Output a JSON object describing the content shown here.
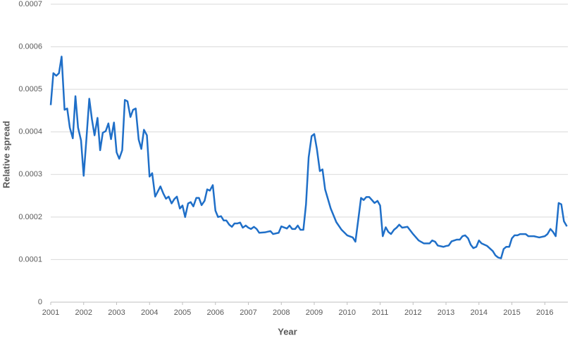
{
  "chart_data": {
    "type": "line",
    "ylabel": "Relative spread",
    "xlabel": "Year",
    "xlim": [
      2001,
      2016.7
    ],
    "xticks": [
      2001,
      2002,
      2003,
      2004,
      2005,
      2006,
      2007,
      2008,
      2009,
      2010,
      2011,
      2012,
      2013,
      2014,
      2015,
      2016
    ],
    "ylim": [
      0,
      0.0007
    ],
    "yticks": [
      0,
      0.0001,
      0.0002,
      0.0003,
      0.0004,
      0.0005,
      0.0006,
      0.0007
    ],
    "grid": true,
    "x": [
      2001.0,
      2001.08,
      2001.17,
      2001.25,
      2001.33,
      2001.42,
      2001.5,
      2001.58,
      2001.67,
      2001.75,
      2001.83,
      2001.92,
      2002.0,
      2002.08,
      2002.17,
      2002.25,
      2002.33,
      2002.42,
      2002.5,
      2002.58,
      2002.67,
      2002.75,
      2002.83,
      2002.92,
      2003.0,
      2003.08,
      2003.17,
      2003.25,
      2003.33,
      2003.42,
      2003.5,
      2003.58,
      2003.67,
      2003.75,
      2003.83,
      2003.92,
      2004.0,
      2004.08,
      2004.17,
      2004.25,
      2004.33,
      2004.42,
      2004.5,
      2004.58,
      2004.67,
      2004.75,
      2004.83,
      2004.92,
      2005.0,
      2005.08,
      2005.17,
      2005.25,
      2005.33,
      2005.42,
      2005.5,
      2005.58,
      2005.67,
      2005.75,
      2005.83,
      2005.92,
      2006.0,
      2006.08,
      2006.17,
      2006.25,
      2006.33,
      2006.42,
      2006.5,
      2006.58,
      2006.67,
      2006.75,
      2006.83,
      2006.92,
      2007.0,
      2007.08,
      2007.17,
      2007.25,
      2007.33,
      2007.5,
      2007.67,
      2007.75,
      2007.92,
      2008.0,
      2008.17,
      2008.25,
      2008.33,
      2008.42,
      2008.5,
      2008.58,
      2008.67,
      2008.75,
      2008.83,
      2008.92,
      2009.0,
      2009.08,
      2009.17,
      2009.25,
      2009.33,
      2009.5,
      2009.67,
      2009.83,
      2010.0,
      2010.17,
      2010.25,
      2010.33,
      2010.42,
      2010.5,
      2010.58,
      2010.67,
      2010.75,
      2010.83,
      2010.92,
      2011.0,
      2011.08,
      2011.17,
      2011.25,
      2011.33,
      2011.42,
      2011.5,
      2011.58,
      2011.67,
      2011.83,
      2012.0,
      2012.17,
      2012.33,
      2012.5,
      2012.58,
      2012.67,
      2012.75,
      2012.92,
      2013.0,
      2013.08,
      2013.17,
      2013.33,
      2013.42,
      2013.5,
      2013.58,
      2013.67,
      2013.75,
      2013.83,
      2013.92,
      2014.0,
      2014.08,
      2014.25,
      2014.42,
      2014.5,
      2014.58,
      2014.67,
      2014.75,
      2014.83,
      2014.92,
      2015.0,
      2015.08,
      2015.17,
      2015.25,
      2015.42,
      2015.5,
      2015.67,
      2015.83,
      2016.0,
      2016.08,
      2016.17,
      2016.25,
      2016.33,
      2016.42,
      2016.5,
      2016.58,
      2016.67
    ],
    "series": [
      {
        "name": "Relative spread",
        "color": "#1f6fc8",
        "values": [
          0.000463,
          0.000538,
          0.000532,
          0.000538,
          0.000577,
          0.000452,
          0.000455,
          0.00041,
          0.000385,
          0.000484,
          0.00041,
          0.00038,
          0.000297,
          0.00038,
          0.000478,
          0.00043,
          0.000392,
          0.000433,
          0.000357,
          0.000398,
          0.000402,
          0.00042,
          0.000383,
          0.000422,
          0.000352,
          0.000337,
          0.000357,
          0.000475,
          0.000472,
          0.000435,
          0.000452,
          0.000455,
          0.000382,
          0.00036,
          0.000405,
          0.000392,
          0.000295,
          0.000303,
          0.000248,
          0.00026,
          0.000272,
          0.000255,
          0.000243,
          0.000248,
          0.000232,
          0.000242,
          0.000248,
          0.00022,
          0.000227,
          0.0002,
          0.000232,
          0.000235,
          0.000225,
          0.000245,
          0.000245,
          0.000228,
          0.000238,
          0.000265,
          0.000262,
          0.000275,
          0.000215,
          0.0002,
          0.000202,
          0.000192,
          0.000192,
          0.000182,
          0.000177,
          0.000185,
          0.000185,
          0.000187,
          0.000175,
          0.00018,
          0.000175,
          0.000172,
          0.000177,
          0.000172,
          0.000163,
          0.000164,
          0.000167,
          0.00016,
          0.000163,
          0.000178,
          0.000173,
          0.00018,
          0.000172,
          0.000172,
          0.00018,
          0.00017,
          0.00017,
          0.00023,
          0.00034,
          0.00039,
          0.000395,
          0.00036,
          0.000308,
          0.000312,
          0.000265,
          0.00022,
          0.000188,
          0.00017,
          0.000157,
          0.000152,
          0.000142,
          0.00019,
          0.000245,
          0.00024,
          0.000247,
          0.000247,
          0.00024,
          0.000233,
          0.000238,
          0.000227,
          0.000155,
          0.000176,
          0.000165,
          0.00016,
          0.00017,
          0.000175,
          0.000182,
          0.000175,
          0.000177,
          0.00016,
          0.000145,
          0.000138,
          0.000138,
          0.000145,
          0.000142,
          0.000133,
          0.00013,
          0.000132,
          0.000133,
          0.000143,
          0.000147,
          0.000147,
          0.000155,
          0.000157,
          0.00015,
          0.000135,
          0.000127,
          0.00013,
          0.000145,
          0.000138,
          0.000132,
          0.00012,
          0.00011,
          0.000105,
          0.000103,
          0.000125,
          0.00013,
          0.00013,
          0.00015,
          0.000157,
          0.000157,
          0.00016,
          0.00016,
          0.000155,
          0.000155,
          0.000152,
          0.000155,
          0.00016,
          0.000172,
          0.000165,
          0.000155,
          0.000233,
          0.00023,
          0.00019,
          0.000178
        ]
      }
    ]
  }
}
